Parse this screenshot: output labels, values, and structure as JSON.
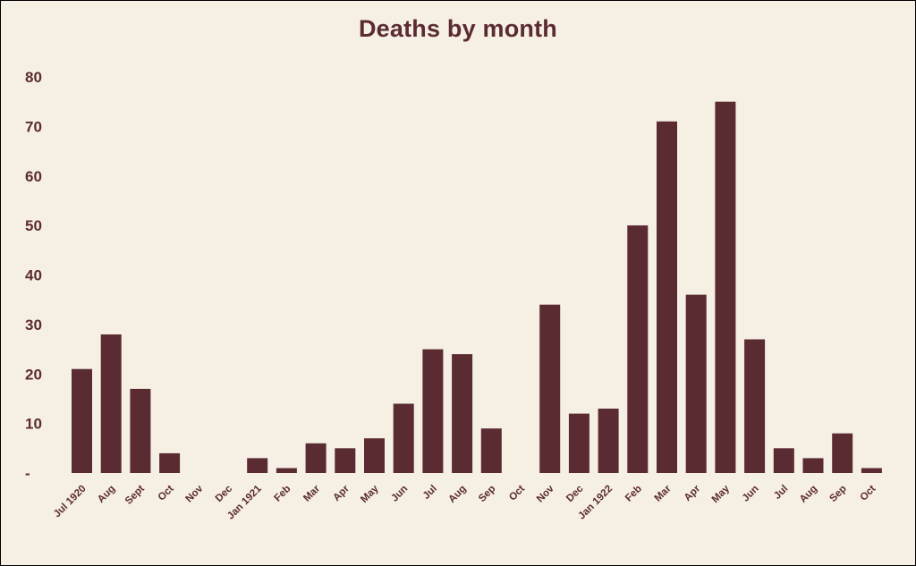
{
  "colors": {
    "background": "#f6efe4",
    "bar": "#5b2b32",
    "text": "#5b2b32",
    "border": "#000000"
  },
  "chart_data": {
    "type": "bar",
    "title": "Deaths by month",
    "xlabel": "",
    "ylabel": "",
    "ylim": [
      0,
      80
    ],
    "yticks": [
      0,
      10,
      20,
      30,
      40,
      50,
      60,
      70,
      80
    ],
    "ytick_labels": [
      "-",
      "10",
      "20",
      "30",
      "40",
      "50",
      "60",
      "70",
      "80"
    ],
    "grid": false,
    "categories": [
      "Jul 1920",
      "Aug",
      "Sept",
      "Oct",
      "Nov",
      "Dec",
      "Jan 1921",
      "Feb",
      "Mar",
      "Apr",
      "May",
      "Jun",
      "Jul",
      "Aug",
      "Sep",
      "Oct",
      "Nov",
      "Dec",
      "Jan 1922",
      "Feb",
      "Mar",
      "Apr",
      "May",
      "Jun",
      "Jul",
      "Aug",
      "Sep",
      "Oct"
    ],
    "values": [
      21,
      28,
      17,
      4,
      0,
      0,
      3,
      1,
      6,
      5,
      7,
      14,
      25,
      24,
      9,
      0,
      34,
      12,
      13,
      50,
      71,
      36,
      75,
      27,
      5,
      3,
      8,
      1
    ]
  }
}
